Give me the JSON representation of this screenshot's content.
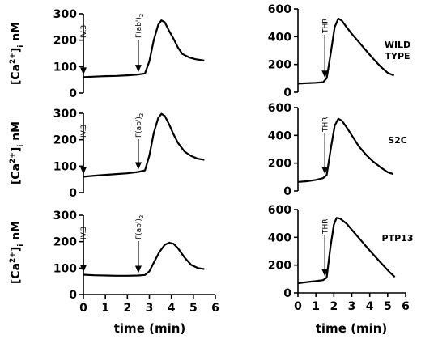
{
  "figure": {
    "row_labels": [
      [
        "WILD",
        "TYPE"
      ],
      [
        "S2C"
      ],
      [
        "PTP13"
      ]
    ],
    "ylabel": {
      "prefix": "[Ca",
      "sup": "2+",
      "close": "]",
      "sub": "i",
      "unit": " nM"
    },
    "xlabel": "time (min)"
  },
  "chart_data": [
    {
      "type": "line",
      "row": "WILD TYPE",
      "stimuli": [
        "IV.3",
        "F(ab')2"
      ],
      "xlim": [
        0,
        6
      ],
      "ylim": [
        0,
        300
      ],
      "yticks": [
        0,
        100,
        200,
        300
      ],
      "xticks": [
        0,
        1,
        2,
        3,
        4,
        5,
        6
      ],
      "annotations": [
        {
          "label": "IV.3",
          "x": 0
        },
        {
          "label": "F(ab')2",
          "x": 2.5
        }
      ],
      "series": [
        {
          "values": [
            [
              0,
              60
            ],
            [
              0.5,
              62
            ],
            [
              1,
              64
            ],
            [
              1.5,
              65
            ],
            [
              2,
              67
            ],
            [
              2.5,
              70
            ],
            [
              2.8,
              74
            ],
            [
              3,
              120
            ],
            [
              3.2,
              200
            ],
            [
              3.4,
              258
            ],
            [
              3.55,
              275
            ],
            [
              3.7,
              268
            ],
            [
              3.9,
              235
            ],
            [
              4.1,
              205
            ],
            [
              4.3,
              172
            ],
            [
              4.5,
              148
            ],
            [
              4.8,
              135
            ],
            [
              5.1,
              128
            ],
            [
              5.5,
              123
            ]
          ]
        }
      ]
    },
    {
      "type": "line",
      "row": "WILD TYPE",
      "stimuli": [
        "THR"
      ],
      "xlim": [
        0,
        6
      ],
      "ylim": [
        0,
        600
      ],
      "yticks": [
        0,
        200,
        400,
        600
      ],
      "xticks": [
        0,
        1,
        2,
        3,
        4,
        5,
        6
      ],
      "annotations": [
        {
          "label": "THR",
          "x": 1.5
        }
      ],
      "series": [
        {
          "values": [
            [
              0,
              62
            ],
            [
              0.5,
              65
            ],
            [
              1,
              68
            ],
            [
              1.4,
              72
            ],
            [
              1.6,
              100
            ],
            [
              1.85,
              300
            ],
            [
              2.05,
              470
            ],
            [
              2.25,
              530
            ],
            [
              2.45,
              515
            ],
            [
              2.7,
              470
            ],
            [
              3,
              420
            ],
            [
              3.4,
              360
            ],
            [
              3.8,
              300
            ],
            [
              4.2,
              240
            ],
            [
              4.6,
              185
            ],
            [
              5,
              140
            ],
            [
              5.35,
              120
            ]
          ]
        }
      ]
    },
    {
      "type": "line",
      "row": "S2C",
      "stimuli": [
        "IV.3",
        "F(ab')2"
      ],
      "xlim": [
        0,
        6
      ],
      "ylim": [
        0,
        300
      ],
      "yticks": [
        0,
        100,
        200,
        300
      ],
      "xticks": [
        0,
        1,
        2,
        3,
        4,
        5,
        6
      ],
      "annotations": [
        {
          "label": "IV.3",
          "x": 0
        },
        {
          "label": "F(ab')2",
          "x": 2.5
        }
      ],
      "series": [
        {
          "values": [
            [
              0,
              60
            ],
            [
              0.5,
              64
            ],
            [
              1,
              67
            ],
            [
              1.5,
              70
            ],
            [
              2,
              73
            ],
            [
              2.5,
              78
            ],
            [
              2.8,
              84
            ],
            [
              3,
              140
            ],
            [
              3.2,
              225
            ],
            [
              3.4,
              282
            ],
            [
              3.55,
              298
            ],
            [
              3.7,
              290
            ],
            [
              3.9,
              258
            ],
            [
              4.1,
              220
            ],
            [
              4.3,
              188
            ],
            [
              4.6,
              155
            ],
            [
              4.9,
              138
            ],
            [
              5.2,
              128
            ],
            [
              5.5,
              124
            ]
          ]
        }
      ]
    },
    {
      "type": "line",
      "row": "S2C",
      "stimuli": [
        "THR"
      ],
      "xlim": [
        0,
        6
      ],
      "ylim": [
        0,
        600
      ],
      "yticks": [
        0,
        200,
        400,
        600
      ],
      "xticks": [
        0,
        1,
        2,
        3,
        4,
        5,
        6
      ],
      "annotations": [
        {
          "label": "THR",
          "x": 1.5
        }
      ],
      "series": [
        {
          "values": [
            [
              0,
              65
            ],
            [
              0.5,
              70
            ],
            [
              1,
              80
            ],
            [
              1.4,
              92
            ],
            [
              1.6,
              115
            ],
            [
              1.85,
              320
            ],
            [
              2.05,
              470
            ],
            [
              2.25,
              520
            ],
            [
              2.45,
              505
            ],
            [
              2.7,
              460
            ],
            [
              3,
              400
            ],
            [
              3.4,
              320
            ],
            [
              3.8,
              260
            ],
            [
              4.2,
              210
            ],
            [
              4.6,
              170
            ],
            [
              5,
              135
            ],
            [
              5.3,
              122
            ]
          ]
        }
      ]
    },
    {
      "type": "line",
      "row": "PTP13",
      "stimuli": [
        "IV.3",
        "F(ab')2"
      ],
      "xlim": [
        0,
        6
      ],
      "ylim": [
        0,
        300
      ],
      "yticks": [
        0,
        100,
        200,
        300
      ],
      "xticks": [
        0,
        1,
        2,
        3,
        4,
        5,
        6
      ],
      "annotations": [
        {
          "label": "IV.3",
          "x": 0
        },
        {
          "label": "F(ab')2",
          "x": 2.5
        }
      ],
      "series": [
        {
          "values": [
            [
              0,
              75
            ],
            [
              0.5,
              73
            ],
            [
              1,
              72
            ],
            [
              1.5,
              71
            ],
            [
              2,
              71
            ],
            [
              2.5,
              72
            ],
            [
              2.8,
              74
            ],
            [
              3,
              88
            ],
            [
              3.2,
              120
            ],
            [
              3.45,
              160
            ],
            [
              3.7,
              188
            ],
            [
              3.9,
              196
            ],
            [
              4.1,
              192
            ],
            [
              4.3,
              175
            ],
            [
              4.6,
              140
            ],
            [
              4.9,
              112
            ],
            [
              5.2,
              100
            ],
            [
              5.5,
              96
            ]
          ]
        }
      ]
    },
    {
      "type": "line",
      "row": "PTP13",
      "stimuli": [
        "THR"
      ],
      "xlim": [
        0,
        6
      ],
      "ylim": [
        0,
        600
      ],
      "yticks": [
        0,
        200,
        400,
        600
      ],
      "xticks": [
        0,
        1,
        2,
        3,
        4,
        5,
        6
      ],
      "annotations": [
        {
          "label": "THR",
          "x": 1.5
        }
      ],
      "series": [
        {
          "values": [
            [
              0,
              70
            ],
            [
              0.5,
              78
            ],
            [
              1,
              85
            ],
            [
              1.4,
              92
            ],
            [
              1.6,
              110
            ],
            [
              1.8,
              320
            ],
            [
              2,
              490
            ],
            [
              2.15,
              540
            ],
            [
              2.35,
              535
            ],
            [
              2.7,
              500
            ],
            [
              3.1,
              440
            ],
            [
              3.5,
              380
            ],
            [
              3.9,
              320
            ],
            [
              4.3,
              262
            ],
            [
              4.7,
              205
            ],
            [
              5.1,
              150
            ],
            [
              5.4,
              115
            ]
          ]
        }
      ]
    }
  ]
}
